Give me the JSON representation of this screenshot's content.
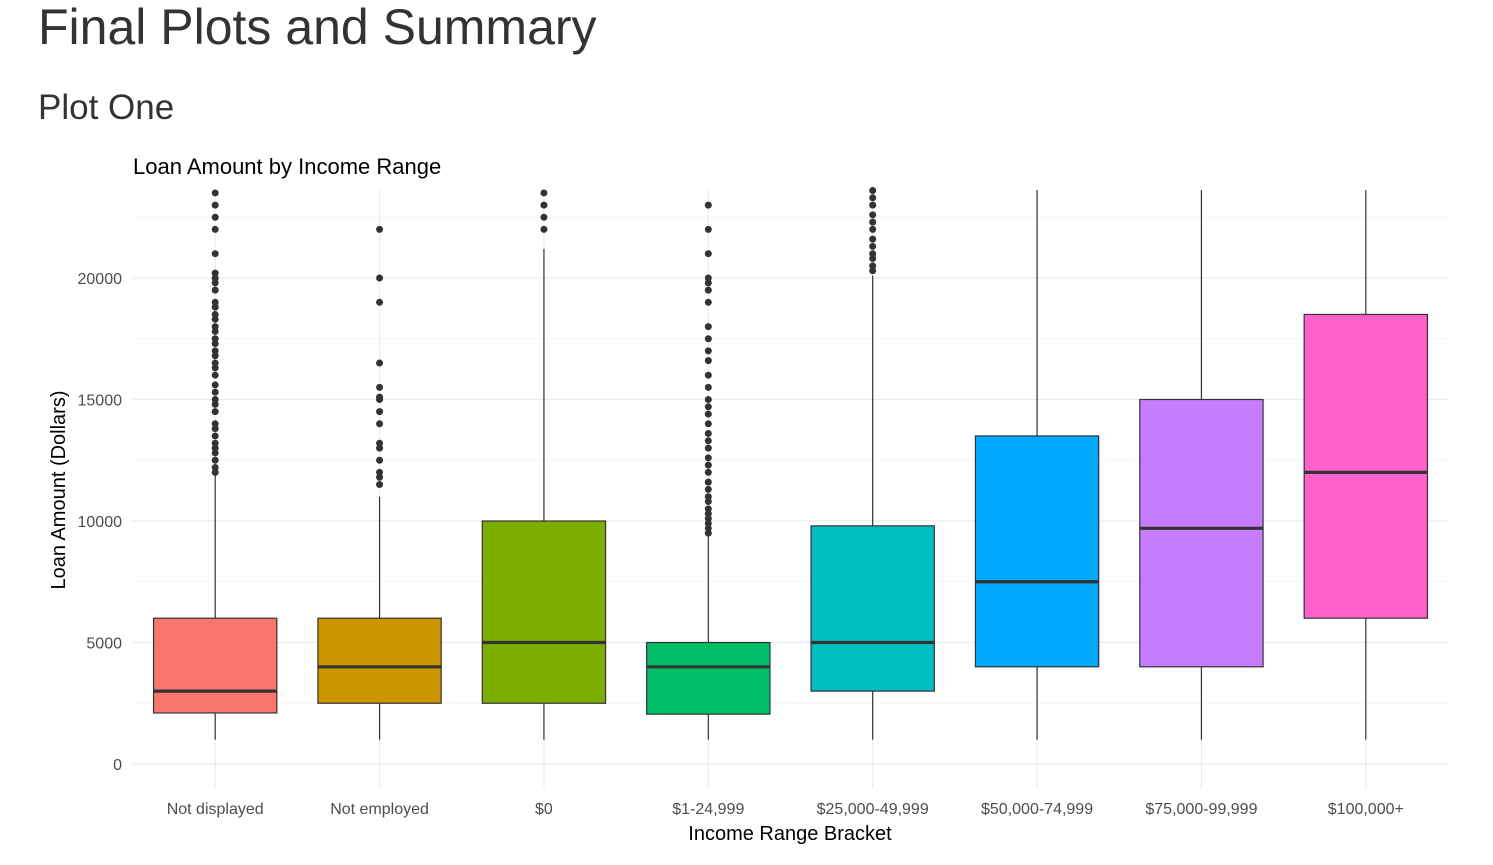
{
  "page": {
    "heading": "Final Plots and Summary",
    "subheading": "Plot One"
  },
  "chart_data": {
    "type": "boxplot",
    "title": "Loan Amount by Income Range",
    "xlabel": "Income Range Bracket",
    "ylabel": "Loan Amount (Dollars)",
    "ylim": [
      0,
      25000
    ],
    "yticks": [
      0,
      5000,
      10000,
      15000,
      20000
    ],
    "grid": true,
    "legend": "none",
    "categories": [
      "Not displayed",
      "Not employed",
      "$0",
      "$1-24,999",
      "$25,000-49,999",
      "$50,000-74,999",
      "$75,000-99,999",
      "$100,000+"
    ],
    "boxes": [
      {
        "category": "Not displayed",
        "min": 1000,
        "q1": 2100,
        "median": 3000,
        "q3": 6000,
        "max": 11900,
        "color": "#F8766D",
        "outliers": [
          12000,
          12200,
          12500,
          12800,
          13000,
          13200,
          13500,
          13800,
          14000,
          14500,
          14800,
          15000,
          15300,
          15600,
          16000,
          16300,
          16500,
          16800,
          17000,
          17300,
          17500,
          17800,
          18000,
          18300,
          18500,
          18800,
          19000,
          19500,
          19800,
          20000,
          20200,
          21000,
          22000,
          22500,
          23000,
          23500,
          23800
        ]
      },
      {
        "category": "Not employed",
        "min": 1000,
        "q1": 2500,
        "median": 4000,
        "q3": 6000,
        "max": 11000,
        "color": "#CD9600",
        "outliers": [
          11500,
          11800,
          12000,
          12500,
          13000,
          13200,
          14000,
          14500,
          15000,
          15100,
          15500,
          16500,
          19000,
          20000,
          22000
        ]
      },
      {
        "category": "$0",
        "min": 1000,
        "q1": 2500,
        "median": 5000,
        "q3": 10000,
        "max": 21200,
        "color": "#7CAE00",
        "outliers": [
          22000,
          22500,
          23000,
          23500,
          23800
        ]
      },
      {
        "category": "$1-24,999",
        "min": 1000,
        "q1": 2050,
        "median": 4000,
        "q3": 5000,
        "max": 9400,
        "color": "#00BE67",
        "outliers": [
          9500,
          9700,
          9900,
          10100,
          10300,
          10500,
          10800,
          11000,
          11300,
          11600,
          12000,
          12300,
          12600,
          13000,
          13300,
          13600,
          14000,
          14400,
          14700,
          15000,
          15500,
          16000,
          16600,
          17000,
          17500,
          18000,
          19000,
          19500,
          19800,
          20000,
          21000,
          22000,
          23000
        ]
      },
      {
        "category": "$25,000-49,999",
        "min": 1000,
        "q1": 3000,
        "median": 5000,
        "q3": 9800,
        "max": 20100,
        "color": "#00BFC4",
        "outliers": [
          20300,
          20500,
          20800,
          21000,
          21300,
          21600,
          22000,
          22300,
          22600,
          23000,
          23300,
          23600
        ]
      },
      {
        "category": "$50,000-74,999",
        "min": 1000,
        "q1": 4000,
        "median": 7500,
        "q3": 13500,
        "max": 23800,
        "color": "#00A9FF",
        "outliers": []
      },
      {
        "category": "$75,000-99,999",
        "min": 1000,
        "q1": 4000,
        "median": 9700,
        "q3": 15000,
        "max": 23800,
        "color": "#C77CFF",
        "outliers": []
      },
      {
        "category": "$100,000+",
        "min": 1000,
        "q1": 6000,
        "median": 12000,
        "q3": 18500,
        "max": 23800,
        "color": "#FF61CC",
        "outliers": []
      }
    ]
  }
}
